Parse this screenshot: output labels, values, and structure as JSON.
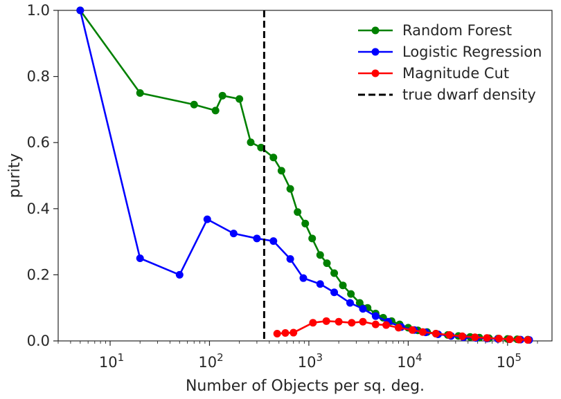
{
  "chart_data": {
    "type": "line",
    "xlabel": "Number of Objects per sq. deg.",
    "ylabel": "purity",
    "xscale": "log",
    "xlim": [
      3,
      280000
    ],
    "ylim": [
      0,
      1.0
    ],
    "grid": false,
    "legend_position": "top-right",
    "y_ticks": [
      "0.0",
      "0.2",
      "0.4",
      "0.6",
      "0.8",
      "1.0"
    ],
    "x_ticks": [
      {
        "base": "10",
        "exp": "1"
      },
      {
        "base": "10",
        "exp": "2"
      },
      {
        "base": "10",
        "exp": "3"
      },
      {
        "base": "10",
        "exp": "4"
      },
      {
        "base": "10",
        "exp": "5"
      }
    ],
    "series": [
      {
        "name": "Random Forest",
        "color": "#008000",
        "x": [
          5,
          20,
          70,
          115,
          135,
          200,
          260,
          330,
          440,
          530,
          650,
          770,
          920,
          1080,
          1300,
          1520,
          1800,
          2200,
          2650,
          3250,
          3900,
          4700,
          5600,
          6800,
          8200,
          10000,
          12500,
          15500,
          19000,
          25000,
          32000,
          42000,
          52000,
          65000,
          80000,
          100000,
          125000,
          160000
        ],
        "y": [
          1.0,
          0.75,
          0.715,
          0.697,
          0.742,
          0.732,
          0.601,
          0.585,
          0.555,
          0.515,
          0.46,
          0.39,
          0.355,
          0.31,
          0.26,
          0.235,
          0.205,
          0.168,
          0.142,
          0.115,
          0.1,
          0.083,
          0.07,
          0.06,
          0.05,
          0.04,
          0.032,
          0.027,
          0.022,
          0.018,
          0.015,
          0.012,
          0.01,
          0.008,
          0.007,
          0.006,
          0.005,
          0.004
        ]
      },
      {
        "name": "Logistic Regression",
        "color": "#0000ff",
        "x": [
          5,
          20,
          50,
          95,
          175,
          300,
          440,
          650,
          880,
          1300,
          1800,
          2600,
          3500,
          4700,
          6300,
          8500,
          11500,
          15000,
          20000,
          27000,
          36000,
          48000,
          62000,
          80000,
          105000,
          135000,
          165000
        ],
        "y": [
          1.0,
          0.25,
          0.2,
          0.368,
          0.325,
          0.31,
          0.302,
          0.248,
          0.19,
          0.172,
          0.147,
          0.115,
          0.097,
          0.075,
          0.058,
          0.042,
          0.033,
          0.026,
          0.02,
          0.015,
          0.011,
          0.009,
          0.007,
          0.006,
          0.005,
          0.004,
          0.003
        ]
      },
      {
        "name": "Magnitude Cut",
        "color": "#ff0000",
        "x": [
          480,
          580,
          700,
          1100,
          1500,
          2000,
          2700,
          3500,
          4700,
          6000,
          8000,
          11000,
          14000,
          19000,
          26000,
          35000,
          47000,
          62000,
          82000,
          105000,
          130000,
          160000
        ],
        "y": [
          0.022,
          0.024,
          0.025,
          0.055,
          0.06,
          0.058,
          0.055,
          0.058,
          0.05,
          0.048,
          0.04,
          0.033,
          0.027,
          0.022,
          0.018,
          0.014,
          0.011,
          0.009,
          0.007,
          0.005,
          0.004,
          0.003
        ]
      }
    ],
    "vline": {
      "name": "true dwarf density",
      "x": 355,
      "color": "#000000",
      "style": "dashed"
    }
  }
}
